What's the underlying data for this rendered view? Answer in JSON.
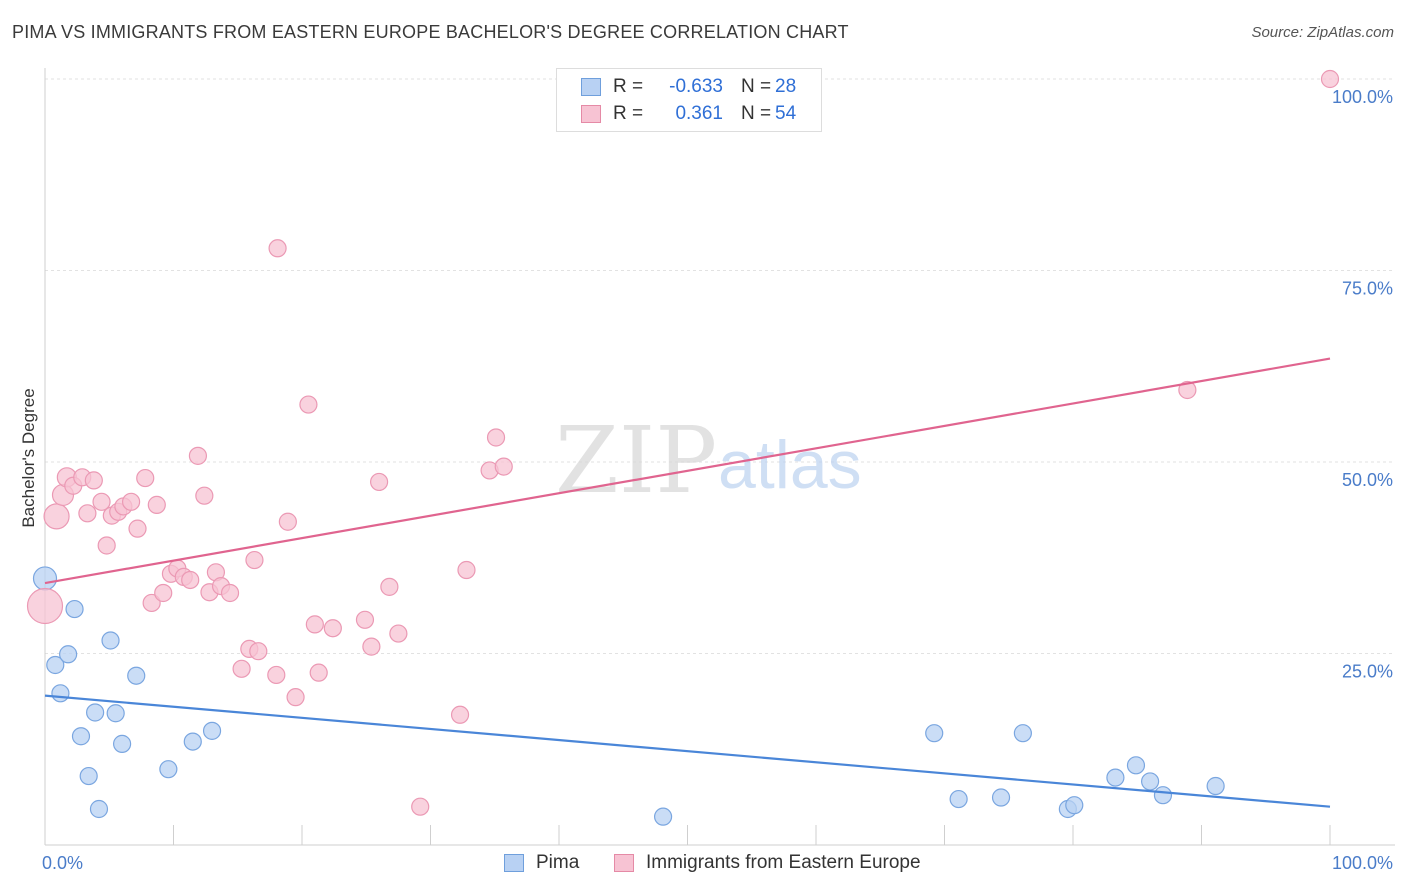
{
  "title": "PIMA VS IMMIGRANTS FROM EASTERN EUROPE BACHELOR'S DEGREE CORRELATION CHART",
  "source": "Source: ZipAtlas.com",
  "watermark": {
    "zip": "ZIP",
    "atlas": "atlas"
  },
  "legend": {
    "rows": [
      {
        "r_label": "R =",
        "r_value": "-0.633",
        "n_label": "N =",
        "n_value": "28",
        "fill": "#b8d1f3",
        "stroke": "#6f9fdc"
      },
      {
        "r_label": "R =",
        "r_value": "0.361",
        "n_label": "N =",
        "n_value": "54",
        "fill": "#f7c3d3",
        "stroke": "#e58aa6"
      }
    ]
  },
  "bottom_legend": [
    {
      "label": "Pima",
      "fill": "#b8d1f3",
      "stroke": "#6f9fdc"
    },
    {
      "label": "Immigrants from Eastern Europe",
      "fill": "#f7c3d3",
      "stroke": "#e58aa6"
    }
  ],
  "chart_data": {
    "type": "scatter",
    "title": "PIMA VS IMMIGRANTS FROM EASTERN EUROPE BACHELOR'S DEGREE CORRELATION CHART",
    "xlabel": "",
    "ylabel": "Bachelor's Degree",
    "xlim": [
      0,
      100
    ],
    "ylim": [
      0,
      100
    ],
    "x_tick_labels": [
      "0.0%",
      "100.0%"
    ],
    "y_ticks": [
      25,
      50,
      75,
      100
    ],
    "y_tick_labels": [
      "25.0%",
      "50.0%",
      "75.0%",
      "100.0%"
    ],
    "grid": true,
    "legend_position": "top-center",
    "series": [
      {
        "name": "Pima",
        "color": "#4a86d8",
        "fill": "#b8d1f3",
        "stroke": "#7aa6e0",
        "trend": {
          "x": [
            0,
            100
          ],
          "y": [
            19.5,
            5.0
          ]
        },
        "points": [
          [
            0,
            34.8,
            22
          ],
          [
            2.3,
            30.8,
            16
          ],
          [
            0.8,
            23.5,
            16
          ],
          [
            1.2,
            19.8,
            16
          ],
          [
            1.8,
            24.9,
            16
          ],
          [
            2.8,
            14.2,
            16
          ],
          [
            3.4,
            9.0,
            16
          ],
          [
            3.9,
            17.3,
            16
          ],
          [
            4.2,
            4.7,
            16
          ],
          [
            5.1,
            26.7,
            16
          ],
          [
            5.5,
            17.2,
            16
          ],
          [
            6.0,
            13.2,
            16
          ],
          [
            7.1,
            22.1,
            16
          ],
          [
            9.6,
            9.9,
            16
          ],
          [
            11.5,
            13.5,
            16
          ],
          [
            13.0,
            14.9,
            16
          ],
          [
            48.1,
            3.7,
            16
          ],
          [
            69.2,
            14.6,
            16
          ],
          [
            71.1,
            6.0,
            16
          ],
          [
            74.4,
            6.2,
            16
          ],
          [
            76.1,
            14.6,
            16
          ],
          [
            79.6,
            4.7,
            16
          ],
          [
            80.1,
            5.2,
            16
          ],
          [
            83.3,
            8.8,
            16
          ],
          [
            84.9,
            10.4,
            16
          ],
          [
            86.0,
            8.3,
            16
          ],
          [
            87.0,
            6.5,
            16
          ],
          [
            91.1,
            7.7,
            16
          ]
        ]
      },
      {
        "name": "Immigrants from Eastern Europe",
        "color": "#e0648f",
        "fill": "#f7c3d3",
        "stroke": "#eb99b4",
        "trend": {
          "x": [
            0,
            100
          ],
          "y": [
            34.2,
            63.5
          ]
        },
        "points": [
          [
            0,
            31.2,
            34
          ],
          [
            0.9,
            42.9,
            24
          ],
          [
            1.4,
            45.7,
            20
          ],
          [
            1.7,
            48.0,
            18
          ],
          [
            2.2,
            46.9,
            16
          ],
          [
            2.9,
            48.0,
            16
          ],
          [
            3.3,
            43.3,
            16
          ],
          [
            3.8,
            47.6,
            16
          ],
          [
            4.4,
            44.8,
            16
          ],
          [
            4.8,
            39.1,
            16
          ],
          [
            5.2,
            43.0,
            16
          ],
          [
            5.7,
            43.5,
            16
          ],
          [
            6.1,
            44.2,
            16
          ],
          [
            6.7,
            44.8,
            16
          ],
          [
            7.2,
            41.3,
            16
          ],
          [
            7.8,
            47.9,
            16
          ],
          [
            8.3,
            31.6,
            16
          ],
          [
            8.7,
            44.4,
            16
          ],
          [
            9.2,
            32.9,
            16
          ],
          [
            9.8,
            35.4,
            16
          ],
          [
            10.3,
            36.1,
            16
          ],
          [
            10.8,
            35.0,
            16
          ],
          [
            11.3,
            34.6,
            16
          ],
          [
            11.9,
            50.8,
            16
          ],
          [
            12.4,
            45.6,
            16
          ],
          [
            12.8,
            33.0,
            16
          ],
          [
            13.3,
            35.6,
            16
          ],
          [
            13.7,
            33.8,
            16
          ],
          [
            14.4,
            32.9,
            16
          ],
          [
            15.3,
            23.0,
            16
          ],
          [
            15.9,
            25.6,
            16
          ],
          [
            16.3,
            37.2,
            16
          ],
          [
            16.6,
            25.3,
            16
          ],
          [
            18.0,
            22.2,
            16
          ],
          [
            18.1,
            77.9,
            16
          ],
          [
            18.9,
            42.2,
            16
          ],
          [
            19.5,
            19.3,
            16
          ],
          [
            20.5,
            57.5,
            16
          ],
          [
            21.0,
            28.8,
            16
          ],
          [
            21.3,
            22.5,
            16
          ],
          [
            22.4,
            28.3,
            16
          ],
          [
            24.9,
            29.4,
            16
          ],
          [
            25.4,
            25.9,
            16
          ],
          [
            26.0,
            47.4,
            16
          ],
          [
            26.8,
            33.7,
            16
          ],
          [
            27.5,
            27.6,
            16
          ],
          [
            29.2,
            5.0,
            16
          ],
          [
            32.3,
            17.0,
            16
          ],
          [
            32.8,
            35.9,
            16
          ],
          [
            34.6,
            48.9,
            16
          ],
          [
            35.1,
            53.2,
            16
          ],
          [
            35.7,
            49.4,
            16
          ],
          [
            88.9,
            59.4,
            16
          ],
          [
            100,
            100,
            16
          ]
        ]
      }
    ]
  }
}
